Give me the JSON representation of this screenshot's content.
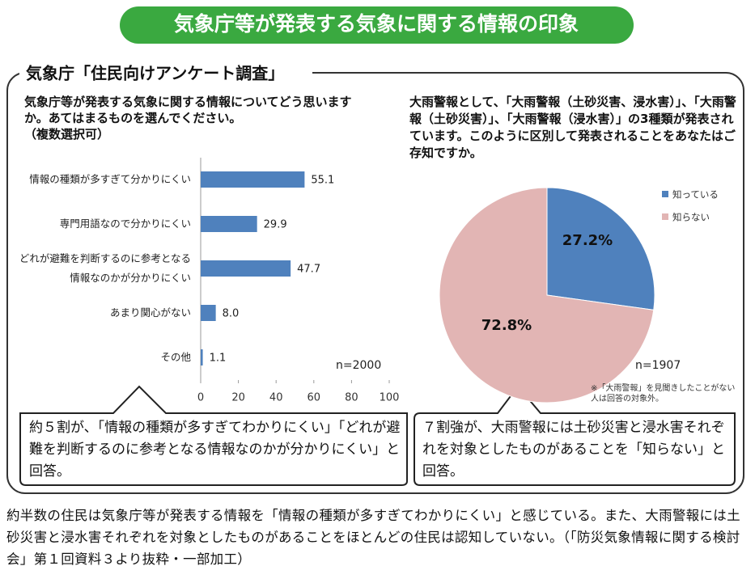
{
  "title": "気象庁等が発表する気象に関する情報の印象",
  "section_title": "気象庁「住民向けアンケート調査」",
  "chart_data": [
    {
      "type": "bar",
      "title": "気象庁等が発表する気象に関する情報についてどう思いますか。あてはまるものを選んでください。\n（複数選択可）",
      "categories": [
        "情報の種類が多すぎて分かりにくい",
        "専門用語なので分かりにくい",
        "どれが避難を判断するのに参考となる\n情報なのかが分かりにくい",
        "あまり関心がない",
        "その他"
      ],
      "values": [
        55.1,
        29.9,
        47.7,
        8.0,
        1.1
      ],
      "value_labels": [
        "55.1",
        "29.9",
        "47.7",
        "8.0",
        "1.1"
      ],
      "color": "#4f81bd",
      "xlim": [
        0,
        100
      ],
      "xticks": [
        0,
        20,
        40,
        60,
        80,
        100
      ],
      "note": "n=2000",
      "callout": "約５割が、「情報の種類が多すぎてわかりにくい」「どれが避難を判断するのに参考となる情報なのかが分かりにくい」と回答。"
    },
    {
      "type": "pie",
      "title": "大雨警報として、「大雨警報（土砂災害、浸水害）」、「大雨警報（土砂災害）」、「大雨警報（浸水害）」の3種類が発表されています。このように区別して発表されることをあなたはご存知ですか。",
      "categories": [
        "知っている",
        "知らない"
      ],
      "values": [
        27.2,
        72.8
      ],
      "value_labels": [
        "27.2%",
        "72.8%"
      ],
      "colors": [
        "#4f81bd",
        "#e2b5b4"
      ],
      "note": "n=1907",
      "footnote": "※「大雨警報」を見聞きしたことがない人は回答の対象外。",
      "callout": "７割強が、大雨警報には土砂災害と浸水害それぞれを対象としたものがあることを「知らない」と回答。"
    }
  ],
  "footer": "約半数の住民は気象庁等が発表する情報を「情報の種類が多すぎてわかりにくい」と感じている。また、大雨警報には土砂災害と浸水害それぞれを対象としたものがあることをほとんどの住民は認知していない。（「防災気象情報に関する検討会」第１回資料３より抜粋・一部加工）"
}
